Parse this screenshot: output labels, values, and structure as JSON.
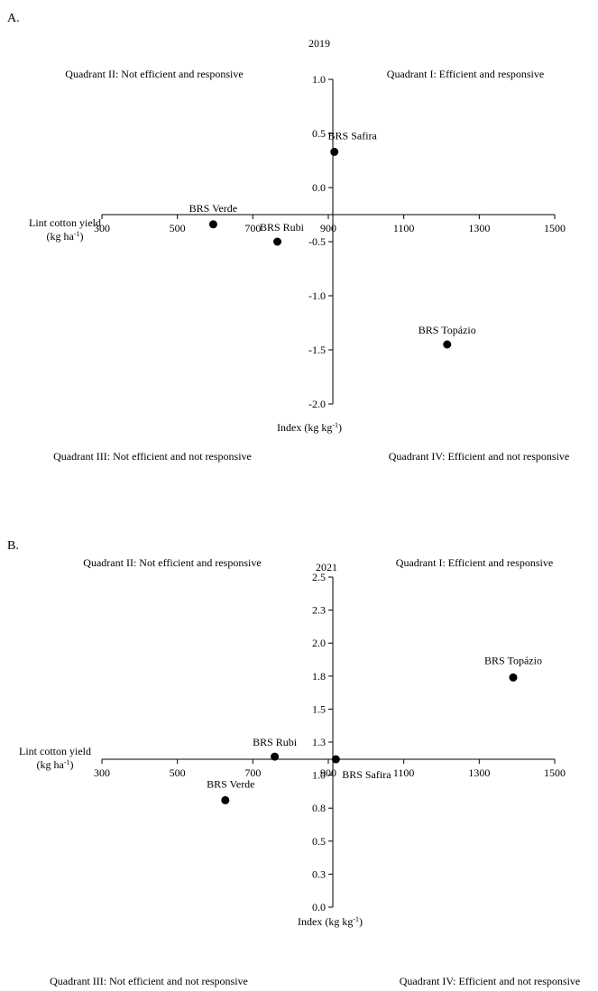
{
  "chart_data": [
    {
      "type": "scatter",
      "panel_label": "A.",
      "title": "2019",
      "xlabel": "Lint cotton yield",
      "xlabel_unit": "(kg ha",
      "xlabel_unit_exp": "-1",
      "xlabel_unit_close": ")",
      "ylabel": "Index (kg kg",
      "ylabel_exp": "-1",
      "ylabel_close": ")",
      "xlim": [
        300,
        1500
      ],
      "ylim": [
        -2.0,
        1.0
      ],
      "x_ticks": [
        "300",
        "500",
        "700",
        "900",
        "1100",
        "1300",
        "1500"
      ],
      "y_ticks": [
        "1.0",
        "0.5",
        "0.0",
        "-0.5",
        "-1.0",
        "-1.5",
        "-2.0"
      ],
      "y_tick_values": [
        1.0,
        0.5,
        0.0,
        -0.5,
        -1.0,
        -1.5,
        -2.0
      ],
      "x_tick_values": [
        300,
        500,
        700,
        900,
        1100,
        1300,
        1500
      ],
      "crossing": {
        "x": 912,
        "y": -0.25
      },
      "quadrants": {
        "q1": "Quadrant I: Efficient and responsive",
        "q2": "Quadrant II: Not efficient and responsive",
        "q3": "Quadrant III: Not efficient and not responsive",
        "q4": "Quadrant IV: Efficient and not responsive"
      },
      "points": [
        {
          "name": "BRS Safira",
          "x": 916,
          "y": 0.33
        },
        {
          "name": "BRS Verde",
          "x": 595,
          "y": -0.34
        },
        {
          "name": "BRS Rubi",
          "x": 765,
          "y": -0.5
        },
        {
          "name": "BRS Topázio",
          "x": 1215,
          "y": -1.45
        }
      ]
    },
    {
      "type": "scatter",
      "panel_label": "B.",
      "title": "2021",
      "xlabel": "Lint cotton yield",
      "xlabel_unit": "(kg ha",
      "xlabel_unit_exp": "-1",
      "xlabel_unit_close": ")",
      "ylabel": "Index (kg kg",
      "ylabel_exp": "-1",
      "ylabel_close": ")",
      "xlim": [
        300,
        1500
      ],
      "ylim": [
        0.0,
        2.5
      ],
      "x_ticks": [
        "300",
        "500",
        "700",
        "900",
        "1100",
        "1300",
        "1500"
      ],
      "y_ticks": [
        "2.5",
        "2.3",
        "2.0",
        "1.8",
        "1.5",
        "1.3",
        "1.0",
        "0.8",
        "0.5",
        "0.3",
        "0.0"
      ],
      "y_tick_values": [
        2.5,
        2.25,
        2.0,
        1.75,
        1.5,
        1.25,
        1.0,
        0.75,
        0.5,
        0.25,
        0.0
      ],
      "x_tick_values": [
        300,
        500,
        700,
        900,
        1100,
        1300,
        1500
      ],
      "crossing": {
        "x": 912,
        "y": 1.12
      },
      "quadrants": {
        "q1": "Quadrant I: Efficient and responsive",
        "q2": "Quadrant II: Not efficient and responsive",
        "q3": "Quadrant III: Not efficient and not responsive",
        "q4": "Quadrant IV: Efficient and not responsive"
      },
      "points": [
        {
          "name": "BRS Topázio",
          "x": 1390,
          "y": 1.74
        },
        {
          "name": "BRS Rubi",
          "x": 758,
          "y": 1.14
        },
        {
          "name": "BRS Safira",
          "x": 920,
          "y": 1.12
        },
        {
          "name": "BRS Verde",
          "x": 627,
          "y": 0.81
        }
      ]
    }
  ]
}
